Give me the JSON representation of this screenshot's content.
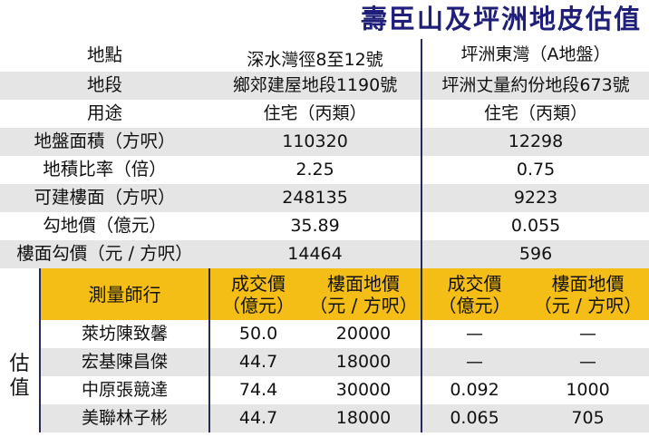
{
  "title": "壽臣山及坪洲地皮估值",
  "header": {
    "label": "地點",
    "site_a": "深水灣徑8至12號",
    "site_b": "坪洲東灣（A地盤）"
  },
  "rows": [
    {
      "label": "地段",
      "a": "鄉郊建屋地段1190號",
      "b": "坪洲丈量約份地段673號"
    },
    {
      "label": "用途",
      "a": "住宅（丙類）",
      "b": "住宅（丙類）"
    },
    {
      "label": "地盤面積（方呎）",
      "a": "110320",
      "b": "12298"
    },
    {
      "label": "地積比率（倍）",
      "a": "2.25",
      "b": "0.75"
    },
    {
      "label": "可建樓面（方呎）",
      "a": "248135",
      "b": "9223"
    },
    {
      "label": "勾地價（億元）",
      "a": "35.89",
      "b": "0.055"
    },
    {
      "label": "樓面勾價（元 / 方呎）",
      "a": "14464",
      "b": "596"
    }
  ],
  "valuation": {
    "side_label": "估值",
    "firm_header": "測量師行",
    "col_price_line1": "成交價",
    "col_price_line2": "（億元）",
    "col_floor_line1": "樓面地價",
    "col_floor_line2": "（元 / 方呎）",
    "firms": [
      {
        "name": "萊坊陳致馨",
        "a_price": "50.0",
        "a_floor": "20000",
        "b_price": "—",
        "b_floor": "—"
      },
      {
        "name": "宏基陳昌傑",
        "a_price": "44.7",
        "a_floor": "18000",
        "b_price": "—",
        "b_floor": "—"
      },
      {
        "name": "中原張競達",
        "a_price": "74.4",
        "a_floor": "30000",
        "b_price": "0.092",
        "b_floor": "1000"
      },
      {
        "name": "美聯林子彬",
        "a_price": "44.7",
        "a_floor": "18000",
        "b_price": "0.065",
        "b_floor": "705"
      }
    ]
  },
  "colors": {
    "title": "#1f1f7a",
    "header_band": "#f5be16",
    "zebra": "#e5e5e5",
    "divider": "#2a2a5a"
  }
}
